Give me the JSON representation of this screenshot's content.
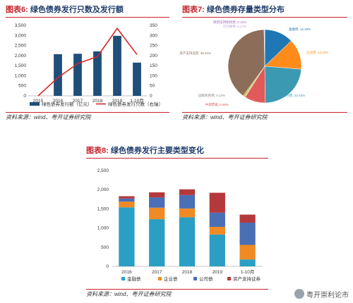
{
  "panels": {
    "fig6": {
      "num": "图表6:",
      "title": "绿色债券发行只数及发行额",
      "source": "资料来源：wind、粤开证券研究院"
    },
    "fig7": {
      "num": "图表7:",
      "title": "绿色债券存量类型分布",
      "source": "资料来源：wind、粤开证券研究院"
    },
    "fig8": {
      "num": "图表8:",
      "title": "绿色债券发行主要类型变化",
      "source": "资料来源：wind、粤开证券研究院"
    }
  },
  "watermark": {
    "text": "粤开崇利论市",
    "icon": "wechat-icon"
  },
  "chart_data": [
    {
      "type": "bar",
      "categories": [
        "2015",
        "2016",
        "2017",
        "2018",
        "2019",
        "1-10月"
      ],
      "series": [
        {
          "name": "绿色债券发行额（亿元）",
          "kind": "bar",
          "axis": "left",
          "color": "#1f4e79",
          "values": [
            0,
            2070,
            2090,
            2210,
            2980,
            1650
          ]
        },
        {
          "name": "绿色债券发行只数（右轴）",
          "kind": "line",
          "axis": "right",
          "color": "#d62728",
          "values": [
            0,
            90,
            160,
            195,
            335,
            205
          ]
        }
      ],
      "ylim": [
        0,
        3500
      ],
      "yticks": [
        "0",
        "500",
        "1,000",
        "1,500",
        "2,000",
        "2,500",
        "3,000",
        "3,500"
      ],
      "y2lim": [
        0,
        350
      ],
      "y2ticks": [
        "0",
        "50",
        "100",
        "150",
        "200",
        "250",
        "300",
        "350"
      ],
      "legend": "bottom"
    },
    {
      "type": "pie",
      "slices": [
        {
          "label": "金融债",
          "value": 12.33,
          "text": "金融债, 12.33%",
          "color": "#1f77b4"
        },
        {
          "label": "企业债",
          "value": 13.04,
          "text": "企业债, 13.04%",
          "color": "#ff8c1a"
        },
        {
          "label": "公司债",
          "value": 22.63,
          "text": "公司债, 22.63%",
          "color": "#3b9ab2"
        },
        {
          "label": "中期票据",
          "value": 8.88,
          "text": "中期票据, 8.88%",
          "color": "#e05a5a"
        },
        {
          "label": "国际机构债",
          "value": 0.12,
          "text": "国际机构债, 0.12%",
          "color": "#7f7f7f"
        },
        {
          "label": "其他",
          "value": 0.9,
          "text": "",
          "color": "#c8c34a"
        },
        {
          "label": "资产支持证券",
          "value": 38.23,
          "text": "资产支持证券, 38.23%",
          "color": "#8c6d5a"
        },
        {
          "label": "可交换债",
          "value": 0.17,
          "text": "可交换债, 0.17%",
          "color": "#c09ad8"
        },
        {
          "label": "政府支持机构债",
          "value": 0.12,
          "text": "政府支持机构债, 0.12%",
          "color": "#9b5fc0"
        }
      ]
    },
    {
      "type": "bar",
      "stacked": true,
      "categories": [
        "2016",
        "2017",
        "2018",
        "2019",
        "1-10月"
      ],
      "series": [
        {
          "name": "金融债",
          "color": "#2b9ec4",
          "values": [
            1540,
            1230,
            1280,
            830,
            180
          ]
        },
        {
          "name": "企业债",
          "color": "#f08a24",
          "values": [
            150,
            300,
            230,
            200,
            380
          ]
        },
        {
          "name": "公司债",
          "color": "#4a6fb5",
          "values": [
            80,
            270,
            350,
            370,
            580
          ]
        },
        {
          "name": "资产支持证券",
          "color": "#b5393a",
          "values": [
            60,
            130,
            150,
            520,
            210
          ]
        }
      ],
      "ylim": [
        0,
        2500
      ],
      "yticks": [
        "0",
        "500",
        "1,000",
        "1,500",
        "2,000",
        "2,500"
      ],
      "legend": "bottom"
    }
  ]
}
